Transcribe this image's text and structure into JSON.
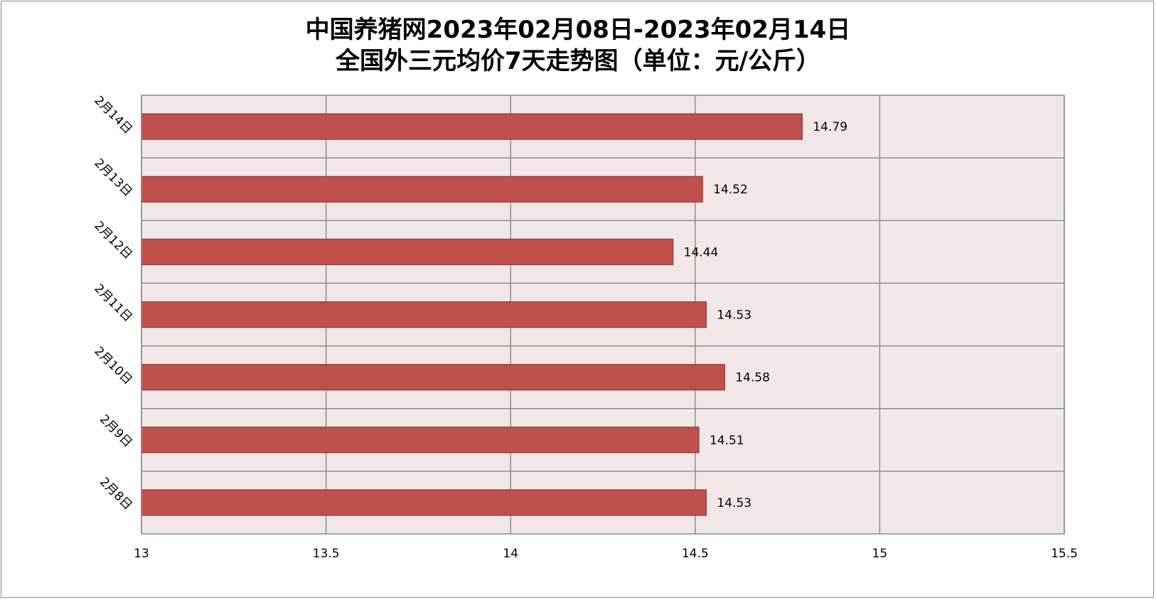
{
  "chart_data": {
    "type": "bar",
    "orientation": "horizontal",
    "title_lines": [
      "中国养猪网2023年02月08日-2023年02月14日",
      "全国外三元均价7天走势图（单位：元/公斤）"
    ],
    "categories": [
      "2月8日",
      "2月9日",
      "2月10日",
      "2月11日",
      "2月12日",
      "2月13日",
      "2月14日"
    ],
    "values": [
      14.53,
      14.51,
      14.58,
      14.53,
      14.44,
      14.52,
      14.79
    ],
    "value_labels": [
      "14.53",
      "14.51",
      "14.58",
      "14.53",
      "14.44",
      "14.52",
      "14.79"
    ],
    "xlim": [
      13,
      15.5
    ],
    "xticks": [
      "13",
      "13.5",
      "14",
      "14.5",
      "15",
      "15.5"
    ],
    "grid": true,
    "legend": "none",
    "colors": {
      "bar_fill": "#c0504d",
      "bar_stroke": "#8c3836",
      "plot_background": "#f2e7e7",
      "grid": "#8c8c8c"
    }
  }
}
